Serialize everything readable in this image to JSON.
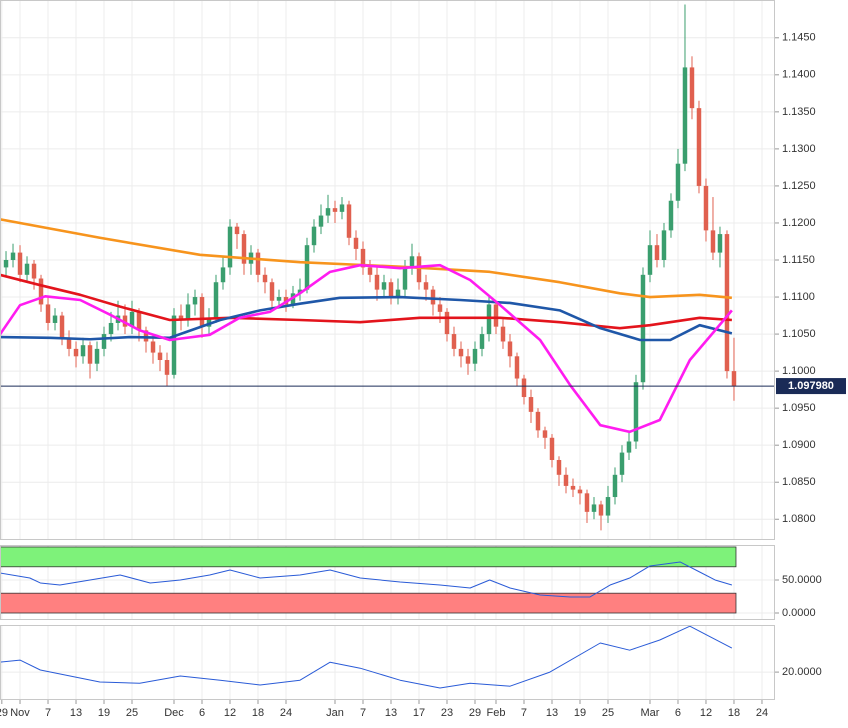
{
  "chart_data": [
    {
      "type": "candlestick",
      "xlim": [
        -2.86,
        107.86
      ],
      "xticks": [
        {
          "value": -2.6,
          "label": "29"
        },
        {
          "value": 0,
          "label": "Nov"
        },
        {
          "value": 4,
          "label": "7"
        },
        {
          "value": 8,
          "label": "13"
        },
        {
          "value": 12,
          "label": "19"
        },
        {
          "value": 16,
          "label": "25"
        },
        {
          "value": 22,
          "label": "Dec"
        },
        {
          "value": 26,
          "label": "6"
        },
        {
          "value": 30,
          "label": "12"
        },
        {
          "value": 34,
          "label": "18"
        },
        {
          "value": 38,
          "label": "24"
        },
        {
          "value": 45,
          "label": "Jan"
        },
        {
          "value": 49,
          "label": "7"
        },
        {
          "value": 53,
          "label": "13"
        },
        {
          "value": 57,
          "label": "17"
        },
        {
          "value": 61,
          "label": "23"
        },
        {
          "value": 65,
          "label": "29"
        },
        {
          "value": 68,
          "label": "Feb"
        },
        {
          "value": 72,
          "label": "7"
        },
        {
          "value": 76,
          "label": "13"
        },
        {
          "value": 80,
          "label": "19"
        },
        {
          "value": 84,
          "label": "25"
        },
        {
          "value": 90,
          "label": "Mar"
        },
        {
          "value": 94,
          "label": "6"
        },
        {
          "value": 98,
          "label": "12"
        },
        {
          "value": 102,
          "label": "18"
        },
        {
          "value": 106,
          "label": "24"
        }
      ],
      "ylim": [
        1.0772,
        1.1501
      ],
      "yticks": [
        {
          "value": 1.145,
          "label": "1.1450"
        },
        {
          "value": 1.14,
          "label": "1.1400"
        },
        {
          "value": 1.135,
          "label": "1.1350"
        },
        {
          "value": 1.13,
          "label": "1.1300"
        },
        {
          "value": 1.125,
          "label": "1.1250"
        },
        {
          "value": 1.12,
          "label": "1.1200"
        },
        {
          "value": 1.115,
          "label": "1.1150"
        },
        {
          "value": 1.11,
          "label": "1.1100"
        },
        {
          "value": 1.105,
          "label": "1.1050"
        },
        {
          "value": 1.1,
          "label": "1.1000"
        },
        {
          "value": 1.095,
          "label": "1.0950"
        },
        {
          "value": 1.09,
          "label": "1.0900"
        },
        {
          "value": 1.085,
          "label": "1.0850"
        },
        {
          "value": 1.08,
          "label": "1.0800"
        }
      ],
      "up_color": "#3a9e6e",
      "down_color": "#e0604f",
      "candles": {
        "x": [
          -2,
          -1,
          0,
          1,
          2,
          3,
          4,
          5,
          6,
          7,
          8,
          9,
          10,
          11,
          12,
          13,
          14,
          15,
          16,
          17,
          18,
          19,
          20,
          21,
          22,
          23,
          24,
          25,
          26,
          27,
          28,
          29,
          30,
          31,
          32,
          33,
          34,
          35,
          36,
          37,
          38,
          39,
          40,
          41,
          42,
          43,
          44,
          45,
          46,
          47,
          48,
          49,
          50,
          51,
          52,
          53,
          54,
          55,
          56,
          57,
          58,
          59,
          60,
          61,
          62,
          63,
          64,
          65,
          66,
          67,
          68,
          69,
          70,
          71,
          72,
          73,
          74,
          75,
          76,
          77,
          78,
          79,
          80,
          81,
          82,
          83,
          84,
          85,
          86,
          87,
          88,
          89,
          90,
          91,
          92,
          93,
          94,
          95,
          96,
          97,
          98,
          99,
          100,
          101,
          102
        ],
        "open": [
          1.114,
          1.115,
          1.116,
          1.113,
          1.1145,
          1.1125,
          1.109,
          1.1065,
          1.1075,
          1.1045,
          1.103,
          1.102,
          1.1035,
          1.101,
          1.103,
          1.105,
          1.1065,
          1.1075,
          1.106,
          1.108,
          1.1055,
          1.104,
          1.1025,
          1.1015,
          1.0995,
          1.1075,
          1.107,
          1.109,
          1.11,
          1.106,
          1.107,
          1.112,
          1.114,
          1.1195,
          1.1185,
          1.1145,
          1.116,
          1.113,
          1.112,
          1.1095,
          1.11,
          1.109,
          1.1105,
          1.111,
          1.117,
          1.1195,
          1.121,
          1.122,
          1.1215,
          1.1225,
          1.118,
          1.1165,
          1.114,
          1.113,
          1.111,
          1.112,
          1.11,
          1.111,
          1.114,
          1.1155,
          1.112,
          1.111,
          1.109,
          1.108,
          1.105,
          1.103,
          1.102,
          1.101,
          1.103,
          1.105,
          1.109,
          1.106,
          1.104,
          1.102,
          1.099,
          1.0965,
          1.0945,
          1.092,
          1.091,
          1.088,
          1.086,
          1.0845,
          1.084,
          1.0835,
          1.081,
          1.082,
          1.0805,
          1.083,
          1.086,
          1.089,
          1.0905,
          1.0985,
          1.113,
          1.117,
          1.115,
          1.119,
          1.123,
          1.128,
          1.141,
          1.1355,
          1.125,
          1.119,
          1.116,
          1.1185,
          1.1
        ],
        "high": [
          1.1162,
          1.1172,
          1.117,
          1.1155,
          1.115,
          1.113,
          1.11,
          1.1085,
          1.108,
          1.1055,
          1.104,
          1.1045,
          1.104,
          1.104,
          1.106,
          1.108,
          1.1095,
          1.109,
          1.1095,
          1.1085,
          1.106,
          1.105,
          1.1035,
          1.1025,
          1.1085,
          1.109,
          1.1105,
          1.111,
          1.1105,
          1.1085,
          1.113,
          1.1155,
          1.1205,
          1.12,
          1.119,
          1.117,
          1.1165,
          1.114,
          1.1125,
          1.111,
          1.111,
          1.1115,
          1.1125,
          1.118,
          1.1205,
          1.1225,
          1.1238,
          1.123,
          1.1235,
          1.123,
          1.119,
          1.1175,
          1.115,
          1.114,
          1.113,
          1.1125,
          1.1125,
          1.115,
          1.1172,
          1.116,
          1.113,
          1.1115,
          1.11,
          1.1085,
          1.106,
          1.104,
          1.103,
          1.104,
          1.106,
          1.11,
          1.1095,
          1.107,
          1.105,
          1.1025,
          1.0995,
          1.0975,
          1.095,
          1.0925,
          1.0915,
          1.0885,
          1.087,
          1.0855,
          1.0845,
          1.084,
          1.083,
          1.0825,
          1.0845,
          1.087,
          1.09,
          1.092,
          1.0995,
          1.114,
          1.119,
          1.1185,
          1.12,
          1.124,
          1.13,
          1.1495,
          1.1425,
          1.1365,
          1.126,
          1.1235,
          1.1195,
          1.119,
          1.1045
        ],
        "low": [
          1.1128,
          1.114,
          1.112,
          1.112,
          1.111,
          1.108,
          1.1055,
          1.1055,
          1.1035,
          1.102,
          1.1005,
          1.101,
          1.099,
          1.1,
          1.102,
          1.104,
          1.1055,
          1.105,
          1.105,
          1.104,
          1.1025,
          1.101,
          1.1,
          1.098,
          1.099,
          1.1055,
          1.106,
          1.1075,
          1.1045,
          1.105,
          1.1065,
          1.111,
          1.113,
          1.1165,
          1.113,
          1.113,
          1.112,
          1.1105,
          1.1085,
          1.1085,
          1.108,
          1.1085,
          1.1095,
          1.1105,
          1.116,
          1.1185,
          1.12,
          1.12,
          1.1205,
          1.117,
          1.115,
          1.113,
          1.112,
          1.1095,
          1.11,
          1.109,
          1.109,
          1.11,
          1.113,
          1.111,
          1.1095,
          1.1075,
          1.1065,
          1.104,
          1.102,
          1.1005,
          1.0995,
          1.1,
          1.102,
          1.104,
          1.105,
          1.103,
          1.1005,
          1.098,
          1.0955,
          1.093,
          1.091,
          1.0895,
          1.087,
          1.0845,
          1.0835,
          1.083,
          1.082,
          1.0795,
          1.08,
          1.0785,
          1.0795,
          1.082,
          1.085,
          1.088,
          1.0895,
          1.0975,
          1.112,
          1.114,
          1.114,
          1.118,
          1.122,
          1.127,
          1.134,
          1.124,
          1.1175,
          1.115,
          1.114,
          1.099,
          1.096
        ],
        "close": [
          1.115,
          1.116,
          1.113,
          1.1145,
          1.1125,
          1.109,
          1.1065,
          1.1075,
          1.1045,
          1.103,
          1.102,
          1.1035,
          1.101,
          1.103,
          1.105,
          1.1065,
          1.1075,
          1.106,
          1.108,
          1.1055,
          1.104,
          1.1025,
          1.1015,
          1.0995,
          1.1075,
          1.107,
          1.109,
          1.11,
          1.106,
          1.107,
          1.112,
          1.114,
          1.1195,
          1.1185,
          1.1145,
          1.116,
          1.113,
          1.112,
          1.1095,
          1.11,
          1.109,
          1.1105,
          1.111,
          1.117,
          1.1195,
          1.121,
          1.122,
          1.1215,
          1.1225,
          1.118,
          1.1165,
          1.114,
          1.113,
          1.111,
          1.112,
          1.11,
          1.111,
          1.114,
          1.1155,
          1.112,
          1.111,
          1.109,
          1.108,
          1.105,
          1.103,
          1.102,
          1.101,
          1.103,
          1.105,
          1.109,
          1.106,
          1.104,
          1.102,
          1.099,
          1.0965,
          1.0945,
          1.092,
          1.091,
          1.088,
          1.086,
          1.0845,
          1.084,
          1.0835,
          1.081,
          1.082,
          1.0805,
          1.083,
          1.086,
          1.089,
          1.0905,
          1.0985,
          1.113,
          1.117,
          1.115,
          1.119,
          1.123,
          1.128,
          1.141,
          1.1355,
          1.125,
          1.119,
          1.116,
          1.1185,
          1.1,
          1.098
        ]
      },
      "series": [
        {
          "color": "#f7941d",
          "x": [
            -2.9,
            11.4,
            25.7,
            40,
            54.3,
            67.1,
            77.1,
            85.7,
            90,
            97.1,
            101.7
          ],
          "values": [
            1.1205,
            1.118,
            1.1157,
            1.1147,
            1.1141,
            1.1134,
            1.112,
            1.1105,
            1.11,
            1.1103,
            1.1099
          ]
        },
        {
          "color": "#e3141c",
          "x": [
            -2.9,
            2.9,
            8.6,
            14.3,
            21.4,
            30,
            40,
            48.6,
            57.1,
            68.6,
            77.1,
            85.7,
            90,
            97.1,
            101.7
          ],
          "values": [
            1.113,
            1.1116,
            1.1103,
            1.1087,
            1.1069,
            1.1072,
            1.1069,
            1.1066,
            1.1072,
            1.1072,
            1.1066,
            1.1058,
            1.1062,
            1.1072,
            1.1069
          ]
        },
        {
          "color": "#1f57a8",
          "x": [
            -2.9,
            4.3,
            10,
            15.7,
            21.4,
            28.6,
            34.3,
            40,
            45.7,
            54.3,
            62.9,
            70,
            77.1,
            82.9,
            88.6,
            92.9,
            97.1,
            101.7
          ],
          "values": [
            1.1046,
            1.1045,
            1.1043,
            1.1046,
            1.1045,
            1.1069,
            1.1082,
            1.1091,
            1.1099,
            1.11,
            1.1096,
            1.1092,
            1.1082,
            1.1058,
            1.1042,
            1.1042,
            1.1062,
            1.1051
          ]
        },
        {
          "color": "#ff1cf0",
          "x": [
            -2.9,
            0,
            3.6,
            8.6,
            12.9,
            17.1,
            21.4,
            27.1,
            31.4,
            35.7,
            40,
            44.3,
            48.6,
            54.3,
            60,
            64.3,
            68.6,
            74.3,
            78.6,
            82.9,
            87.1,
            91.4,
            95.7,
            99.3,
            101.7
          ],
          "values": [
            1.1049,
            1.1089,
            1.1101,
            1.1096,
            1.1076,
            1.1055,
            1.1042,
            1.1049,
            1.1072,
            1.108,
            1.1105,
            1.1134,
            1.1143,
            1.1139,
            1.1143,
            1.1123,
            1.1089,
            1.1042,
            1.0981,
            1.0927,
            1.0918,
            1.0934,
            1.1015,
            1.1055,
            1.1082
          ]
        }
      ],
      "last_price": {
        "value": 1.09798,
        "label": "1.097980",
        "color": "#1a2b57"
      }
    },
    {
      "type": "line",
      "ylim": [
        -10.6,
        103
      ],
      "yticks": [
        {
          "value": 50,
          "label": "50.0000"
        },
        {
          "value": 0,
          "label": "0.0000"
        }
      ],
      "bands": [
        {
          "from": 70,
          "to": 100,
          "color": "#7ef27a"
        },
        {
          "from": 0,
          "to": 30,
          "color": "#ff8080"
        }
      ],
      "series": [
        {
          "color": "#2a5bd7",
          "x": [
            -2.9,
            1.4,
            2.9,
            5.7,
            10,
            14.3,
            18.6,
            22.9,
            27.1,
            30,
            34.3,
            40,
            44.3,
            48.6,
            54.3,
            60,
            64.3,
            67.1,
            70,
            74.3,
            78.6,
            81.4,
            84.3,
            87.1,
            90,
            94.3,
            97.1,
            99.3,
            101.7
          ],
          "values": [
            60.6,
            53,
            45.5,
            42.4,
            50,
            57.6,
            45.5,
            50,
            57.6,
            65.2,
            53,
            57.6,
            65.2,
            53,
            47,
            42.4,
            37.9,
            50,
            37.9,
            27.3,
            24.2,
            24.2,
            42.4,
            53,
            71.2,
            77.3,
            62.1,
            50,
            42.4
          ]
        }
      ]
    },
    {
      "type": "line",
      "ylim": [
        10.7,
        35.7
      ],
      "yticks": [
        {
          "value": 20,
          "label": "20.0000"
        }
      ],
      "series": [
        {
          "color": "#2a5bd7",
          "x": [
            -2.9,
            0,
            2.9,
            11.4,
            17.1,
            22.9,
            28.6,
            34.3,
            40,
            44.3,
            48.6,
            54.3,
            60,
            64.3,
            70,
            75.7,
            82.9,
            87.1,
            91.4,
            95.7,
            101.7
          ],
          "values": [
            23.3,
            24,
            20.7,
            16.7,
            16.3,
            18.7,
            17.3,
            15.7,
            17.3,
            23.3,
            21.3,
            17.3,
            14.7,
            16.3,
            15.3,
            20,
            29.7,
            27.3,
            30.7,
            35.3,
            28
          ]
        }
      ]
    }
  ]
}
